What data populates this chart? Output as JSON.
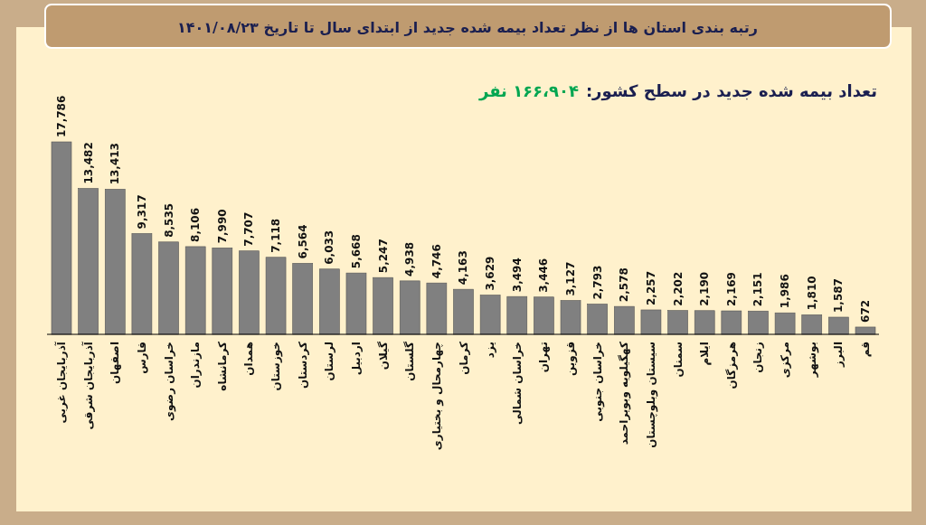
{
  "chart_data": {
    "type": "bar",
    "title": "رتبه بندی استان ها از نظر تعداد بیمه شده جدید از ابتدای سال تا تاریخ ۱۴۰۱/۰۸/۲۳",
    "subtitle": "تعداد بیمه شده جدید در سطح کشور:",
    "annotations": [
      "۱۶۶،۹۰۴ نفر"
    ],
    "categories": [
      "آذربایجان غربی",
      "آذربایجان شرقی",
      "اصفهان",
      "فارس",
      "خراسان رضوی",
      "مازندران",
      "کرمانشاه",
      "همدان",
      "خوزستان",
      "کردستان",
      "لرستان",
      "اردبیل",
      "گیلان",
      "گلستان",
      "چهارمحال و بختیاری",
      "کرمان",
      "یزد",
      "خراسان شمالی",
      "تهران",
      "قزوین",
      "خراسان جنوبی",
      "کهگیلویه وبویراحمد",
      "سیستان وبلوچستان",
      "سمنان",
      "ایلام",
      "هرمزگان",
      "زنجان",
      "مرکزی",
      "بوشهر",
      "البرز",
      "قم"
    ],
    "values": [
      17786,
      13482,
      13413,
      9317,
      8535,
      8106,
      7990,
      7707,
      7118,
      6564,
      6033,
      5668,
      5247,
      4938,
      4746,
      4163,
      3629,
      3494,
      3446,
      3127,
      2793,
      2578,
      2257,
      2202,
      2190,
      2169,
      2151,
      1986,
      1810,
      1587,
      672
    ],
    "value_labels": [
      "17,786",
      "13,482",
      "13,413",
      "9,317",
      "8,535",
      "8,106",
      "7,990",
      "7,707",
      "7,118",
      "6,564",
      "6,033",
      "5,668",
      "5,247",
      "4,938",
      "4,746",
      "4,163",
      "3,629",
      "3,494",
      "3,446",
      "3,127",
      "2,793",
      "2,578",
      "2,257",
      "2,202",
      "2,190",
      "2,169",
      "2,151",
      "1,986",
      "1,810",
      "1,587",
      "672"
    ],
    "color": "#808080"
  }
}
